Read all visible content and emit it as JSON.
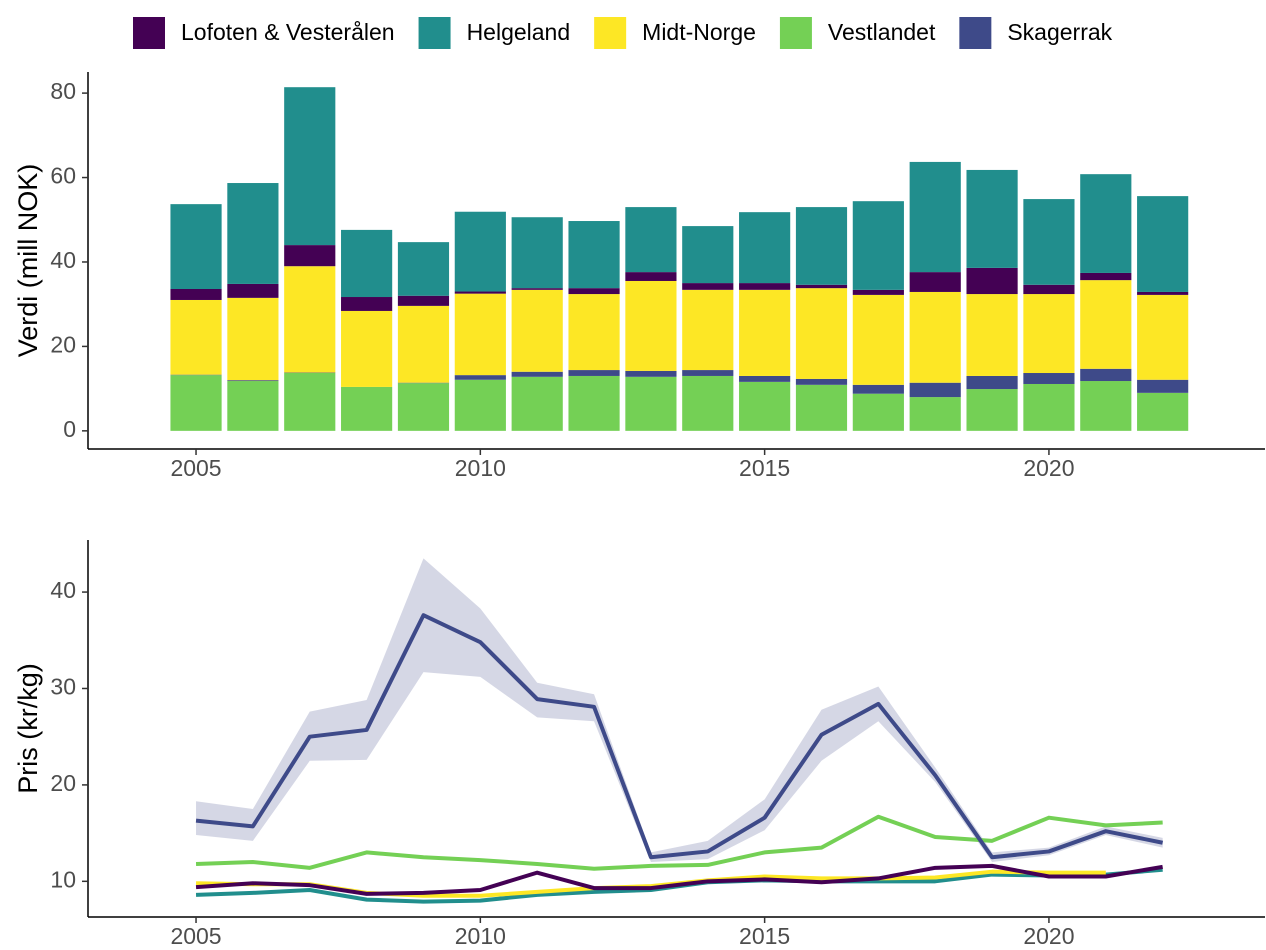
{
  "chart_data": [
    {
      "type": "bar",
      "stacked": true,
      "ylabel": "Verdi (mill NOK)",
      "x": [
        2005,
        2006,
        2007,
        2008,
        2009,
        2010,
        2011,
        2012,
        2013,
        2014,
        2015,
        2016,
        2017,
        2018,
        2019,
        2020,
        2021,
        2022
      ],
      "xlim": [
        2003.1,
        2023.8
      ],
      "xticks": [
        2005,
        2010,
        2015,
        2020
      ],
      "ylim": [
        -4.3,
        85
      ],
      "yticks": [
        0,
        20,
        40,
        60,
        80
      ],
      "series": [
        {
          "name": "Lofoten & Vesterålen",
          "color": "#440154",
          "values": [
            2.6,
            3.3,
            5,
            3.3,
            2.4,
            0.5,
            0.4,
            1.4,
            2.1,
            1.6,
            1.6,
            0.8,
            1.2,
            4.7,
            6.2,
            2.2,
            1.7,
            0.7
          ]
        },
        {
          "name": "Helgeland",
          "color": "#218e8d",
          "values": [
            20.1,
            23.9,
            37.4,
            15.9,
            12.7,
            18.9,
            16.8,
            15.9,
            15.4,
            13.5,
            16.8,
            18.4,
            21,
            26.1,
            23.2,
            20.3,
            23.4,
            22.7
          ]
        },
        {
          "name": "Midt-Norge",
          "color": "#fde725",
          "values": [
            17.7,
            19.5,
            25.2,
            18,
            18.2,
            19.3,
            19.4,
            18,
            21.3,
            19,
            20.4,
            21.5,
            21.3,
            21.5,
            19.4,
            18.7,
            21,
            20.1
          ]
        },
        {
          "name": "Vestlandet",
          "color": "#74d055",
          "values": [
            13.2,
            11.8,
            13.7,
            10.4,
            11.3,
            12.1,
            12.8,
            13,
            12.8,
            13,
            11.6,
            10.9,
            8.8,
            8,
            9.9,
            11.1,
            11.8,
            9
          ]
        },
        {
          "name": "Skagerrak",
          "color": "#3e4a89",
          "values": [
            0.1,
            0.2,
            0.1,
            0,
            0.1,
            1.1,
            1.2,
            1.4,
            1.4,
            1.4,
            1.4,
            1.4,
            2.1,
            3.4,
            3.1,
            2.6,
            2.9,
            3.1
          ]
        }
      ]
    },
    {
      "type": "line",
      "ylabel": "Pris (kr/kg)",
      "x": [
        2005,
        2006,
        2007,
        2008,
        2009,
        2010,
        2011,
        2012,
        2013,
        2014,
        2015,
        2016,
        2017,
        2018,
        2019,
        2020,
        2021,
        2022
      ],
      "xlim": [
        2003.1,
        2023.8
      ],
      "xticks": [
        2005,
        2010,
        2015,
        2020
      ],
      "ylim": [
        6.3,
        45.4
      ],
      "yticks": [
        10,
        20,
        30,
        40
      ],
      "series": [
        {
          "color": "#218e8d",
          "values": [
            8.6,
            8.8,
            9.1,
            8.1,
            7.9,
            8,
            8.6,
            8.9,
            9.1,
            9.9,
            10.1,
            10,
            10,
            10,
            10.7,
            10.6,
            10.7,
            11.2
          ]
        },
        {
          "color": "#fde725",
          "values": [
            9.8,
            9.7,
            9.7,
            8.8,
            8.5,
            8.5,
            8.9,
            9.3,
            9.5,
            10.1,
            10.5,
            10.3,
            10.3,
            10.4,
            11,
            10.9,
            10.9,
            null
          ]
        },
        {
          "color": "#440154",
          "values": [
            9.4,
            9.8,
            9.6,
            8.7,
            8.8,
            9.1,
            10.9,
            9.3,
            9.3,
            10,
            10.2,
            9.9,
            10.3,
            11.4,
            11.6,
            10.5,
            10.5,
            11.5
          ]
        },
        {
          "color": "#74d055",
          "values": [
            11.8,
            12,
            11.4,
            13,
            12.5,
            12.2,
            11.8,
            11.3,
            11.6,
            11.7,
            13,
            13.5,
            16.7,
            14.6,
            14.2,
            16.6,
            15.8,
            16.1
          ]
        },
        {
          "color": "#3e4a89",
          "values": [
            16.3,
            15.7,
            25,
            25.7,
            37.6,
            34.8,
            28.9,
            28.1,
            12.5,
            13.1,
            16.6,
            25.2,
            28.4,
            21,
            12.5,
            13.1,
            15.2,
            14
          ],
          "lower": [
            14.8,
            14.2,
            22.5,
            22.6,
            31.7,
            31.2,
            27,
            26.6,
            12,
            12.3,
            15.3,
            22.5,
            26.6,
            20.3,
            12,
            12.7,
            14.8,
            13.5
          ],
          "upper": [
            18.3,
            17.5,
            27.6,
            28.8,
            43.5,
            38.3,
            30.6,
            29.4,
            13,
            14.2,
            18.5,
            27.8,
            30.2,
            21.8,
            13,
            13.5,
            15.7,
            14.5
          ]
        }
      ]
    }
  ]
}
